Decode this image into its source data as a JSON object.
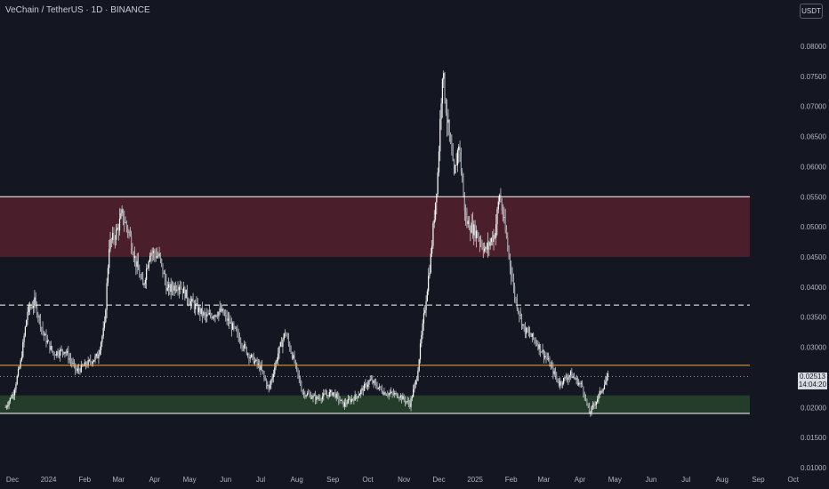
{
  "header": {
    "symbol_line": "VeChain / TetherUS · 1D · BINANCE"
  },
  "currency_button": "USDT",
  "last_price": {
    "value": "0.02513",
    "countdown": "14:04:20"
  },
  "colors": {
    "background": "#141722",
    "candles": "#e6e6e6",
    "resistance_zone": "#4a1f2b",
    "support_zone": "#233d2a",
    "orange_line": "#f7a53b",
    "white_line": "#ffffff",
    "axis_text": "#b2b5be"
  },
  "chart_data": {
    "type": "candlestick",
    "title": "VeChain / TetherUS · 1D · BINANCE",
    "ylim": [
      0.01,
      0.082
    ],
    "y_ticks": [
      "0.08000",
      "0.07500",
      "0.07000",
      "0.06500",
      "0.06000",
      "0.05500",
      "0.05000",
      "0.04500",
      "0.04000",
      "0.03500",
      "0.03000",
      "0.02500",
      "0.02000",
      "0.01500",
      "0.01000"
    ],
    "x_tick_labels": [
      "Dec",
      "2024",
      "Feb",
      "Mar",
      "Apr",
      "May",
      "Jun",
      "Jul",
      "Aug",
      "Sep",
      "Oct",
      "Nov",
      "Dec",
      "2025",
      "Feb",
      "Mar",
      "Apr",
      "May",
      "Jun",
      "Jul",
      "Aug",
      "Sep",
      "Oct"
    ],
    "x_tick_dates": [
      "2023-12-01",
      "2024-01-01",
      "2024-02-01",
      "2024-03-01",
      "2024-04-01",
      "2024-05-01",
      "2024-06-01",
      "2024-07-01",
      "2024-08-01",
      "2024-09-01",
      "2024-10-01",
      "2024-11-01",
      "2024-12-01",
      "2025-01-01",
      "2025-02-01",
      "2025-03-01",
      "2025-04-01",
      "2025-05-01",
      "2025-06-01",
      "2025-07-01",
      "2025-08-01",
      "2025-09-01",
      "2025-10-01"
    ],
    "price_path": [
      [
        "2023-11-25",
        0.02
      ],
      [
        "2023-12-02",
        0.0225
      ],
      [
        "2023-12-08",
        0.0275
      ],
      [
        "2023-12-14",
        0.036
      ],
      [
        "2023-12-20",
        0.0375
      ],
      [
        "2023-12-28",
        0.032
      ],
      [
        "2024-01-05",
        0.029
      ],
      [
        "2024-01-15",
        0.0295
      ],
      [
        "2024-01-25",
        0.026
      ],
      [
        "2024-02-05",
        0.0275
      ],
      [
        "2024-02-12",
        0.0285
      ],
      [
        "2024-02-18",
        0.0335
      ],
      [
        "2024-02-22",
        0.047
      ],
      [
        "2024-02-28",
        0.049
      ],
      [
        "2024-03-04",
        0.052
      ],
      [
        "2024-03-10",
        0.049
      ],
      [
        "2024-03-16",
        0.044
      ],
      [
        "2024-03-22",
        0.04
      ],
      [
        "2024-03-28",
        0.046
      ],
      [
        "2024-04-05",
        0.045
      ],
      [
        "2024-04-12",
        0.0395
      ],
      [
        "2024-04-22",
        0.0405
      ],
      [
        "2024-05-02",
        0.0375
      ],
      [
        "2024-05-15",
        0.035
      ],
      [
        "2024-05-28",
        0.036
      ],
      [
        "2024-06-08",
        0.033
      ],
      [
        "2024-06-20",
        0.029
      ],
      [
        "2024-07-01",
        0.0265
      ],
      [
        "2024-07-08",
        0.023
      ],
      [
        "2024-07-16",
        0.029
      ],
      [
        "2024-07-22",
        0.0325
      ],
      [
        "2024-07-30",
        0.0275
      ],
      [
        "2024-08-06",
        0.0225
      ],
      [
        "2024-08-18",
        0.0215
      ],
      [
        "2024-09-01",
        0.0225
      ],
      [
        "2024-09-10",
        0.0205
      ],
      [
        "2024-09-22",
        0.022
      ],
      [
        "2024-10-03",
        0.0245
      ],
      [
        "2024-10-15",
        0.0225
      ],
      [
        "2024-10-28",
        0.022
      ],
      [
        "2024-11-06",
        0.0205
      ],
      [
        "2024-11-12",
        0.025
      ],
      [
        "2024-11-18",
        0.035
      ],
      [
        "2024-11-24",
        0.045
      ],
      [
        "2024-11-30",
        0.059
      ],
      [
        "2024-12-04",
        0.076
      ],
      [
        "2024-12-08",
        0.068
      ],
      [
        "2024-12-14",
        0.058
      ],
      [
        "2024-12-18",
        0.064
      ],
      [
        "2024-12-24",
        0.051
      ],
      [
        "2025-01-02",
        0.049
      ],
      [
        "2025-01-10",
        0.046
      ],
      [
        "2025-01-18",
        0.049
      ],
      [
        "2025-01-22",
        0.0555
      ],
      [
        "2025-01-28",
        0.048
      ],
      [
        "2025-02-04",
        0.0385
      ],
      [
        "2025-02-12",
        0.033
      ],
      [
        "2025-02-22",
        0.031
      ],
      [
        "2025-03-04",
        0.028
      ],
      [
        "2025-03-14",
        0.024
      ],
      [
        "2025-03-24",
        0.0255
      ],
      [
        "2025-04-03",
        0.0235
      ],
      [
        "2025-04-09",
        0.019
      ],
      [
        "2025-04-16",
        0.0215
      ],
      [
        "2025-04-25",
        0.0251
      ]
    ],
    "zones": [
      {
        "kind": "resistance",
        "from": 0.045,
        "to": 0.055
      },
      {
        "kind": "support",
        "from": 0.019,
        "to": 0.022
      }
    ],
    "levels": [
      {
        "price": 0.055,
        "style": "solid",
        "color": "#ffffff"
      },
      {
        "price": 0.037,
        "style": "dashed",
        "color": "#ffffff"
      },
      {
        "price": 0.027,
        "style": "solid",
        "color": "#f7a53b"
      },
      {
        "price": 0.019,
        "style": "solid",
        "color": "#ffffff"
      }
    ],
    "last_value": 0.02513
  }
}
